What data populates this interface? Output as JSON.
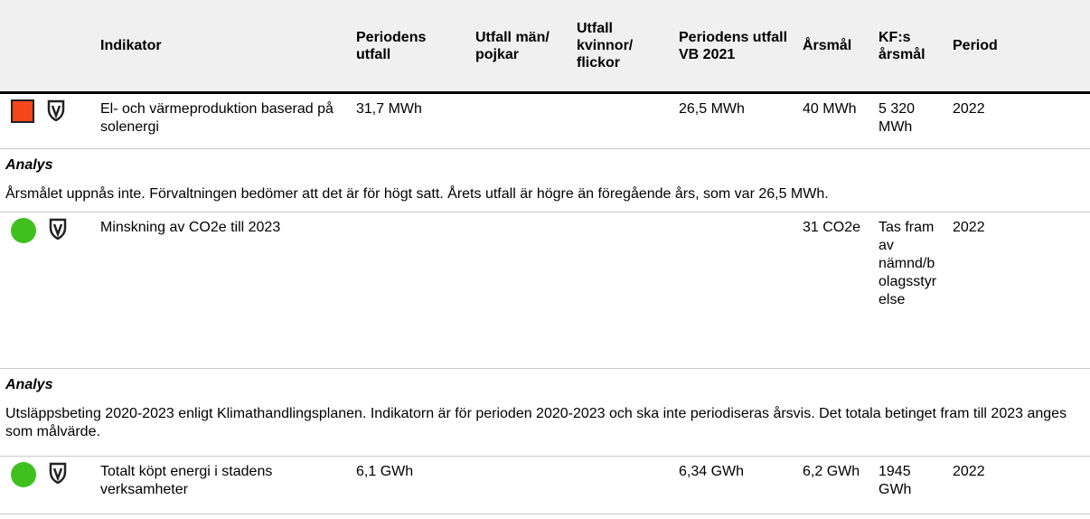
{
  "table": {
    "header": [
      "Indikator",
      "Periodens utfall",
      "Utfall män/ pojkar",
      "Utfall kvinnor/ flickor",
      "Periodens utfall VB 2021",
      "Årsmål",
      "KF:s årsmål",
      "Period"
    ],
    "rows": [
      {
        "indikator": "El- och värmeproduktion baserad på solenergi",
        "utfall": "31,7 MWh",
        "vb": "26,5 MWh",
        "arsmal": "40 MWh",
        "kf": "5 320 MWh",
        "period": "2022",
        "analysis": {
          "title": "Analys",
          "text": "Årsmålet uppnås inte. Förvaltningen bedömer att det är för högt satt. Årets utfall är högre än föregående års, som var 26,5 MWh."
        }
      },
      {
        "indikator": "Minskning av CO2e till 2023",
        "arsmal": "31 CO2e",
        "kf": "Tas fram av nämnd/bolagsstyrelse",
        "period": "2022",
        "analysis": {
          "title": "Analys",
          "text": "Utsläppsbeting 2020-2023 enligt Klimathandlingsplanen. Indikatorn är för perioden 2020-2023 och ska inte periodiseras årsvis. Det totala betinget fram till 2023 anges som målvärde."
        }
      },
      {
        "indikator": "Totalt köpt energi i stadens verksamheter",
        "utfall": "6,1 GWh",
        "vb": "6,34 GWh",
        "arsmal": "6,2 GWh",
        "kf": "1945 GWh",
        "period": "2022"
      }
    ]
  }
}
